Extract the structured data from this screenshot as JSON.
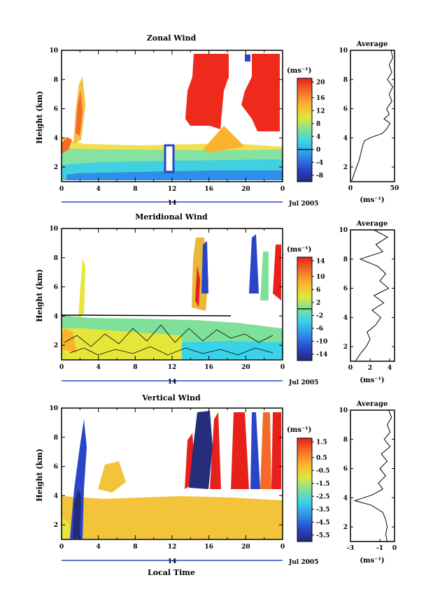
{
  "chart_data": [
    {
      "type": "heatmap",
      "title": "Zonal Wind",
      "ylabel": "Height (km)",
      "xlabel": "",
      "date_label": "Jul 2005",
      "day_label": "14",
      "ylim": [
        1,
        10
      ],
      "xlim": [
        0,
        24
      ],
      "x_ticks": [
        "0",
        "4",
        "8",
        "12",
        "16",
        "20",
        "0"
      ],
      "y_ticks": [
        "2",
        "4",
        "6",
        "8",
        "10"
      ],
      "colorbar": {
        "unit_label": "(ms⁻¹)",
        "ticks": [
          "20",
          "16",
          "12",
          "8",
          "4",
          "0",
          "-4",
          "-8"
        ],
        "range": [
          -10,
          22
        ]
      },
      "profile": {
        "title": "Average",
        "xlabel": "(ms⁻¹)",
        "xlim": [
          0,
          50
        ],
        "x_ticks": [
          "0",
          "50"
        ],
        "y_ticks": [
          "2",
          "4",
          "6",
          "8",
          "10"
        ],
        "heights": [
          1.0,
          1.5,
          2.0,
          2.5,
          3.0,
          3.5,
          3.8,
          4.0,
          4.3,
          4.6,
          5.0,
          5.3,
          5.6,
          6.0,
          6.5,
          7.0,
          7.5,
          8.0,
          8.5,
          9.0,
          9.5,
          10.0
        ],
        "values": [
          1,
          4,
          7,
          10,
          12,
          14,
          16,
          22,
          36,
          41,
          45,
          38,
          44,
          41,
          47,
          44,
          48,
          42,
          47,
          44,
          48,
          46
        ]
      }
    },
    {
      "type": "heatmap",
      "title": "Meridional Wind",
      "ylabel": "Height (km)",
      "xlabel": "",
      "date_label": "Jul 2005",
      "day_label": "14",
      "ylim": [
        1,
        10
      ],
      "xlim": [
        0,
        24
      ],
      "x_ticks": [
        "0",
        "4",
        "8",
        "12",
        "16",
        "20",
        "0"
      ],
      "y_ticks": [
        "2",
        "4",
        "6",
        "8",
        "10"
      ],
      "colorbar": {
        "unit_label": "(ms⁻¹)",
        "ticks": [
          "14",
          "10",
          "6",
          "2",
          "-2",
          "-6",
          "-10",
          "-14"
        ],
        "range": [
          -16,
          16
        ]
      },
      "profile": {
        "title": "Average",
        "xlabel": "(ms⁻¹)",
        "xlim": [
          0,
          4.5
        ],
        "x_ticks": [
          "0",
          "2",
          "4"
        ],
        "y_ticks": [
          "2",
          "4",
          "6",
          "8",
          "10"
        ],
        "heights": [
          1.0,
          1.5,
          2.0,
          2.5,
          3.0,
          3.5,
          4.0,
          4.5,
          5.0,
          5.5,
          6.0,
          6.5,
          7.0,
          7.5,
          8.0,
          8.5,
          9.0,
          9.5,
          10.0
        ],
        "values": [
          0.5,
          1.0,
          1.6,
          2.0,
          1.7,
          2.6,
          3.1,
          2.2,
          3.4,
          2.4,
          3.9,
          3.0,
          3.6,
          2.8,
          1.0,
          3.3,
          2.6,
          3.8,
          2.4
        ]
      }
    },
    {
      "type": "heatmap",
      "title": "Vertical Wind",
      "ylabel": "Height (km)",
      "xlabel": "Local Time",
      "date_label": "Jul 2005",
      "day_label": "14",
      "ylim": [
        1,
        10
      ],
      "xlim": [
        0,
        24
      ],
      "x_ticks": [
        "0",
        "4",
        "8",
        "12",
        "16",
        "20",
        "0"
      ],
      "y_ticks": [
        "2",
        "4",
        "6",
        "8",
        "10"
      ],
      "colorbar": {
        "unit_label": "(ms⁻¹)",
        "ticks": [
          "1.5",
          "0.5",
          "-0.5",
          "-1.5",
          "-2.5",
          "-3.5",
          "-4.5",
          "-5.5"
        ],
        "range": [
          -6,
          2
        ]
      },
      "profile": {
        "title": "Average",
        "xlabel": "(ms⁻¹)",
        "xlim": [
          -3,
          0
        ],
        "x_ticks": [
          "-3",
          "-1",
          "0"
        ],
        "y_ticks": [
          "2",
          "4",
          "6",
          "8",
          "10"
        ],
        "heights": [
          1.0,
          1.5,
          2.0,
          2.5,
          3.0,
          3.5,
          3.8,
          4.2,
          4.6,
          5.0,
          5.5,
          6.0,
          6.5,
          7.0,
          7.5,
          8.0,
          8.5,
          9.0,
          9.5,
          10.0
        ],
        "values": [
          -0.5,
          -0.6,
          -0.5,
          -0.6,
          -0.8,
          -1.6,
          -2.7,
          -1.5,
          -0.8,
          -1.1,
          -0.6,
          -1.0,
          -0.5,
          -0.9,
          -0.3,
          -0.7,
          -0.3,
          -0.5,
          -0.2,
          -0.4
        ]
      }
    }
  ]
}
